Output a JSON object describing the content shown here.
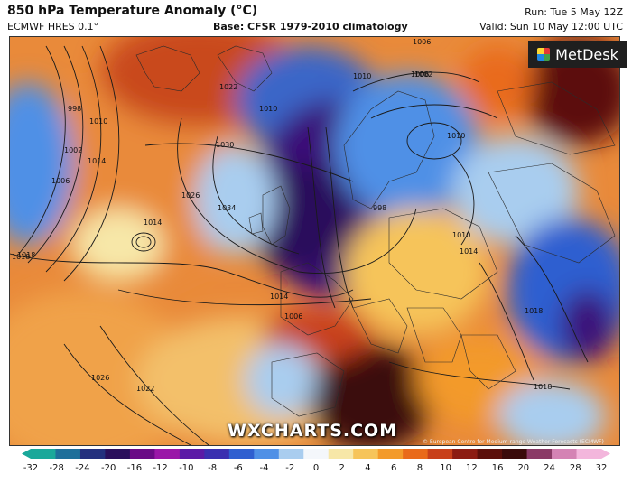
{
  "header": {
    "title": "850 hPa Temperature Anomaly (°C)",
    "model": "ECMWF HRES 0.1°",
    "base": "Base: CFSR 1979-2010 climatology",
    "run": "Run: Tue 5 May 12Z",
    "valid": "Valid: Sun 10 May 12:00 UTC"
  },
  "logo": {
    "text": "MetDesk",
    "icon": "metdesk-logo-icon"
  },
  "watermark": "WXCHARTS.COM",
  "credit": "© European Centre for Medium-range Weather Forecasts (ECMWF)",
  "isobar_labels": [
    "1018",
    "1022",
    "1010",
    "998",
    "1002",
    "1006",
    "1014",
    "1010",
    "1006",
    "1030",
    "1026",
    "1034",
    "1014",
    "1018",
    "1014",
    "1006",
    "1026",
    "1022",
    "1014",
    "1010",
    "1018",
    "1018",
    "998",
    "1006",
    "1010",
    "1002",
    "1010"
  ],
  "colorbar": {
    "ticks": [
      "-32",
      "-28",
      "-24",
      "-20",
      "-16",
      "-12",
      "-10",
      "-8",
      "-6",
      "-4",
      "-2",
      "0",
      "2",
      "4",
      "6",
      "8",
      "10",
      "12",
      "16",
      "20",
      "24",
      "28",
      "32"
    ],
    "colors": [
      "#1aa89a",
      "#1e6f9a",
      "#23307e",
      "#2a0f5c",
      "#6a0a86",
      "#9a16a8",
      "#5b1aa6",
      "#3a2fb0",
      "#2f5fd0",
      "#4f90e6",
      "#a9cdef",
      "#f4f7fb",
      "#f7e7a8",
      "#f6c45a",
      "#f39a2a",
      "#e96a1a",
      "#c8401a",
      "#8c1c12",
      "#5b0f0a",
      "#3a0a0a",
      "#8a3a66",
      "#d483b4",
      "#f3b6dc"
    ]
  },
  "map_colors": {
    "sea_warm": "#e98a3a",
    "sea_hot": "#c9481c",
    "cold_blue": "#3a66c8",
    "deep_purple": "#3b0f78",
    "neutral": "#f3f1e8",
    "extreme_hot": "#3a0b0b",
    "land_lines": "#2b2b2b"
  }
}
